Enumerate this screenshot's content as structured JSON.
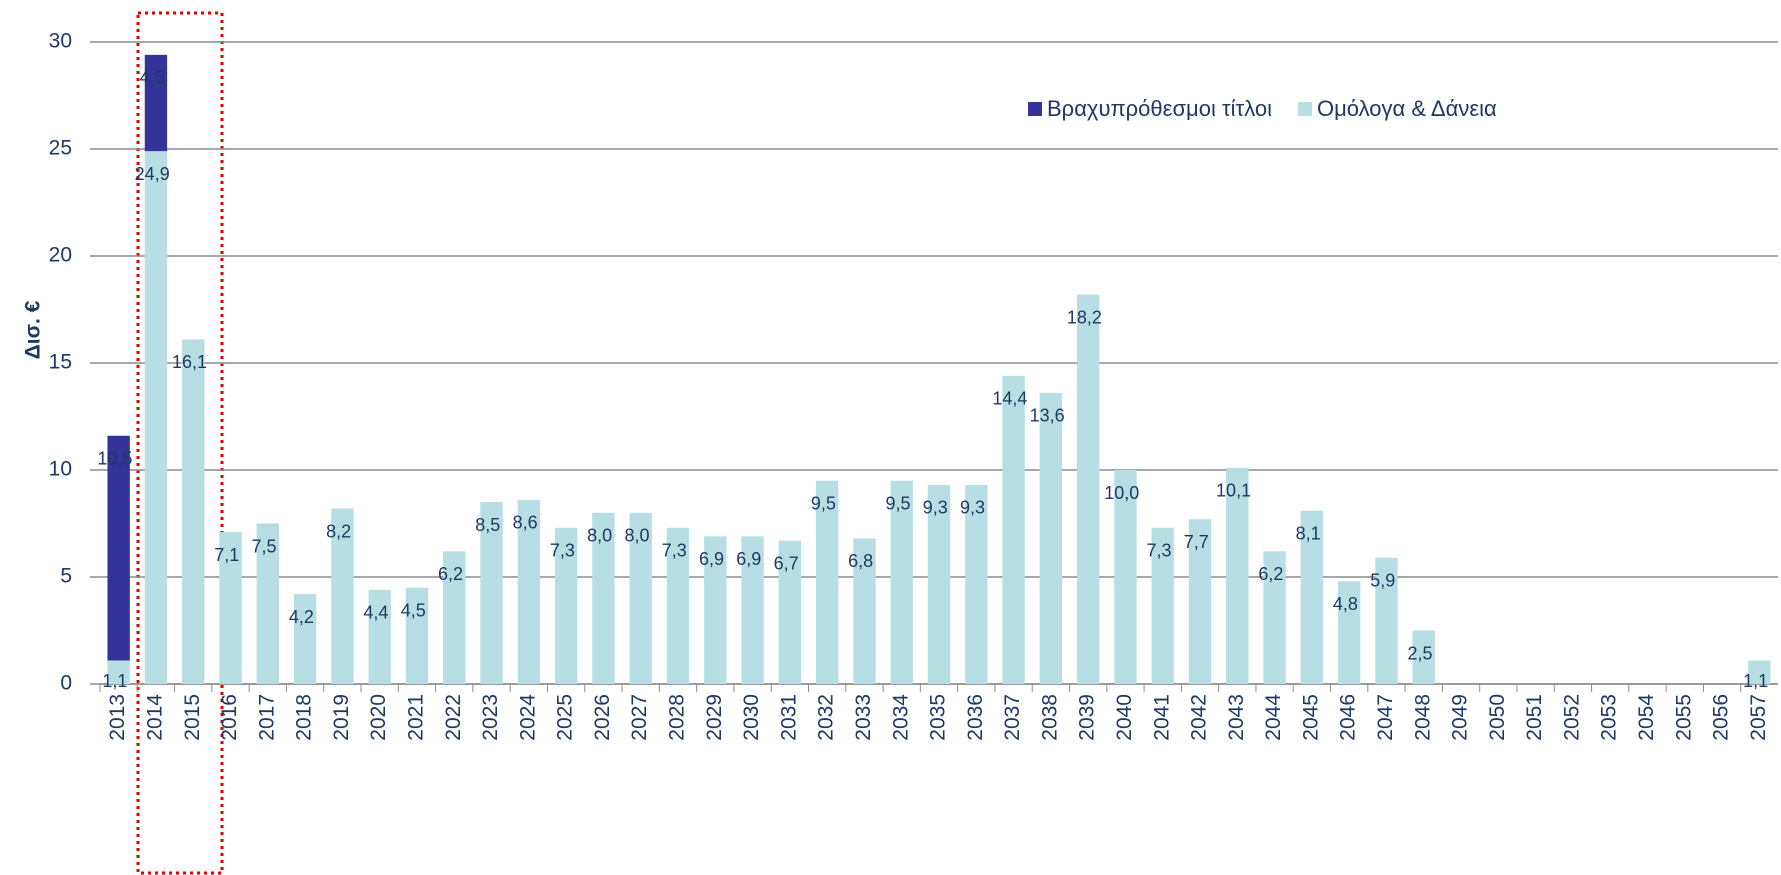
{
  "chart_data": {
    "type": "stacked_bar",
    "y_label": "Δισ. €",
    "categories": [
      "2013",
      "2014",
      "2015",
      "2016",
      "2017",
      "2018",
      "2019",
      "2020",
      "2021",
      "2022",
      "2023",
      "2024",
      "2025",
      "2026",
      "2027",
      "2028",
      "2029",
      "2030",
      "2031",
      "2032",
      "2033",
      "2034",
      "2035",
      "2036",
      "2037",
      "2038",
      "2039",
      "2040",
      "2041",
      "2042",
      "2043",
      "2044",
      "2045",
      "2046",
      "2047",
      "2048",
      "2049",
      "2050",
      "2051",
      "2052",
      "2053",
      "2054",
      "2055",
      "2056",
      "2057"
    ],
    "series": [
      {
        "name": "Ομόλογα & Δάνεια",
        "color": "#b7dee3",
        "values": [
          1.1,
          24.9,
          16.1,
          7.1,
          7.5,
          4.2,
          8.2,
          4.4,
          4.5,
          6.2,
          8.5,
          8.6,
          7.3,
          8.0,
          8.0,
          7.3,
          6.9,
          6.9,
          6.7,
          9.5,
          6.8,
          9.5,
          9.3,
          9.3,
          14.4,
          13.6,
          18.2,
          10.0,
          7.3,
          7.7,
          10.1,
          6.2,
          8.1,
          4.8,
          5.9,
          2.5,
          null,
          null,
          null,
          null,
          null,
          null,
          null,
          null,
          1.1
        ],
        "value_labels": [
          "1,1",
          "24,9",
          "16,1",
          "7,1",
          "7,5",
          "4,2",
          "8,2",
          "4,4",
          "4,5",
          "6,2",
          "8,5",
          "8,6",
          "7,3",
          "8,0",
          "8,0",
          "7,3",
          "6,9",
          "6,9",
          "6,7",
          "9,5",
          "6,8",
          "9,5",
          "9,3",
          "9,3",
          "14,4",
          "13,6",
          "18,2",
          "10,0",
          "7,3",
          "7,7",
          "10,1",
          "6,2",
          "8,1",
          "4,8",
          "5,9",
          "2,5",
          null,
          null,
          null,
          null,
          null,
          null,
          null,
          null,
          "1,1"
        ]
      },
      {
        "name": "Βραχυπρόθεσμοι τίτλοι",
        "color": "#333399",
        "values": [
          10.5,
          4.5,
          null,
          null,
          null,
          null,
          null,
          null,
          null,
          null,
          null,
          null,
          null,
          null,
          null,
          null,
          null,
          null,
          null,
          null,
          null,
          null,
          null,
          null,
          null,
          null,
          null,
          null,
          null,
          null,
          null,
          null,
          null,
          null,
          null,
          null,
          null,
          null,
          null,
          null,
          null,
          null,
          null,
          null,
          null
        ],
        "value_labels": [
          "10,5",
          "4,5",
          null,
          null,
          null,
          null,
          null,
          null,
          null,
          null,
          null,
          null,
          null,
          null,
          null,
          null,
          null,
          null,
          null,
          null,
          null,
          null,
          null,
          null,
          null,
          null,
          null,
          null,
          null,
          null,
          null,
          null,
          null,
          null,
          null,
          null,
          null,
          null,
          null,
          null,
          null,
          null,
          null,
          null,
          null
        ]
      }
    ],
    "ylim": [
      0,
      30
    ],
    "yticks": [
      0,
      5,
      10,
      15,
      20,
      25,
      30
    ],
    "grid": true
  }
}
